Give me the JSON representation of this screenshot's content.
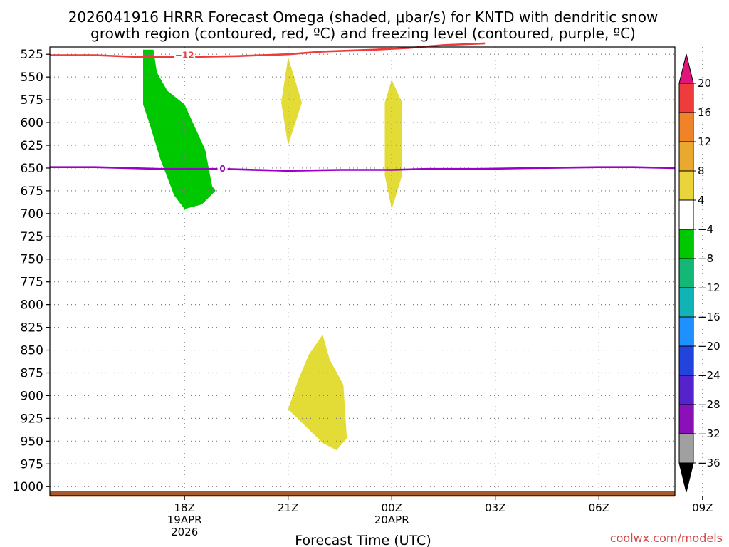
{
  "title_lines": [
    "2026041916 HRRR Forecast Omega (shaded, μbar/s) for KNTD with dendritic snow",
    "growth region (contoured, red, ºC) and freezing level (contoured, purple, ºC)"
  ],
  "x_axis_title": "Forecast Time (UTC)",
  "credit": "coolwx.com/models",
  "chart_data": {
    "type": "time-height cross section",
    "y_axis": {
      "ticks": [
        525,
        550,
        575,
        600,
        625,
        650,
        675,
        700,
        725,
        750,
        775,
        800,
        825,
        850,
        875,
        900,
        925,
        950,
        975,
        1000
      ],
      "range": [
        517,
        1010
      ],
      "grid": true
    },
    "x_axis": {
      "range_hours": [
        -3.9,
        14.2
      ],
      "ticks": [
        {
          "t": 0,
          "lines": [
            "18Z",
            "19APR",
            "2026"
          ]
        },
        {
          "t": 3,
          "lines": [
            "21Z"
          ]
        },
        {
          "t": 6,
          "lines": [
            "00Z",
            "20APR"
          ]
        },
        {
          "t": 9,
          "lines": [
            "03Z"
          ]
        },
        {
          "t": 12,
          "lines": [
            "06Z"
          ]
        },
        {
          "t": 15,
          "lines": [
            "09Z"
          ]
        }
      ],
      "grid": true
    },
    "colorbar": {
      "labels": [
        "20",
        "16",
        "12",
        "8",
        "4",
        "−4",
        "−8",
        "−12",
        "−16",
        "−20",
        "−24",
        "−28",
        "−32",
        "−36"
      ],
      "colors": [
        "#ee3b3b",
        "#f08228",
        "#e8a92e",
        "#e9d43b",
        "#ffffff",
        "#00c800",
        "#13b876",
        "#10b4b4",
        "#1e90ff",
        "#2244dd",
        "#5522cc",
        "#8a10b8",
        "#a0a0a0"
      ],
      "top_arrow_color": "#e0147a",
      "bottom_arrow_color": "#000000"
    },
    "shaded_regions": [
      {
        "name": "omega-negative-area",
        "color": "#00c800",
        "points": [
          [
            -1.2,
            520
          ],
          [
            -0.9,
            520
          ],
          [
            -0.8,
            545
          ],
          [
            -0.5,
            565
          ],
          [
            0.0,
            580
          ],
          [
            0.6,
            630
          ],
          [
            0.8,
            670
          ],
          [
            0.9,
            675
          ],
          [
            0.5,
            690
          ],
          [
            0.0,
            695
          ],
          [
            -0.3,
            680
          ],
          [
            -0.7,
            640
          ],
          [
            -1.0,
            603
          ],
          [
            -1.2,
            580
          ]
        ]
      },
      {
        "name": "omega-positive-area-1",
        "color": "#e3dc37",
        "points": [
          [
            3.0,
            528
          ],
          [
            3.4,
            578
          ],
          [
            3.0,
            625
          ],
          [
            2.8,
            578
          ]
        ]
      },
      {
        "name": "omega-positive-area-2",
        "color": "#e3dc37",
        "points": [
          [
            6.0,
            553
          ],
          [
            6.3,
            578
          ],
          [
            6.3,
            658
          ],
          [
            6.1,
            683
          ],
          [
            6.0,
            695
          ],
          [
            5.8,
            658
          ],
          [
            5.8,
            578
          ]
        ]
      },
      {
        "name": "omega-positive-area-3",
        "color": "#e3dc37",
        "points": [
          [
            4.0,
            833
          ],
          [
            4.2,
            860
          ],
          [
            4.6,
            888
          ],
          [
            4.7,
            947
          ],
          [
            4.4,
            960
          ],
          [
            4.0,
            952
          ],
          [
            3.7,
            941
          ],
          [
            3.0,
            915
          ],
          [
            3.3,
            882
          ],
          [
            3.6,
            855
          ]
        ]
      }
    ],
    "contours": [
      {
        "name": "dgz-contour",
        "color": "#ee3b3b",
        "label": "−12",
        "label_at": [
          0.0,
          526
        ],
        "points": [
          [
            -3.9,
            526
          ],
          [
            -2.6,
            526
          ],
          [
            -1.3,
            528
          ],
          [
            0.0,
            528
          ],
          [
            1.5,
            527
          ],
          [
            3.0,
            525
          ],
          [
            4.0,
            522
          ],
          [
            5.5,
            520
          ],
          [
            6.5,
            518
          ],
          [
            7.5,
            515
          ],
          [
            8.7,
            513
          ]
        ]
      },
      {
        "name": "freezing-level-contour",
        "color": "#9a00c8",
        "label": "0",
        "label_at": [
          1.1,
          651
        ],
        "points": [
          [
            -3.9,
            649
          ],
          [
            -2.6,
            649
          ],
          [
            -0.7,
            651
          ],
          [
            1.1,
            651
          ],
          [
            3.0,
            653
          ],
          [
            4.5,
            652
          ],
          [
            6.0,
            652
          ],
          [
            7.0,
            651
          ],
          [
            8.5,
            651
          ],
          [
            10.0,
            650
          ],
          [
            12.0,
            649
          ],
          [
            13.0,
            649
          ],
          [
            14.2,
            650
          ]
        ]
      },
      {
        "name": "surface-strip",
        "color": "#a65a2a",
        "points": [
          [
            -3.9,
            1008
          ],
          [
            14.2,
            1008
          ]
        ]
      }
    ]
  }
}
